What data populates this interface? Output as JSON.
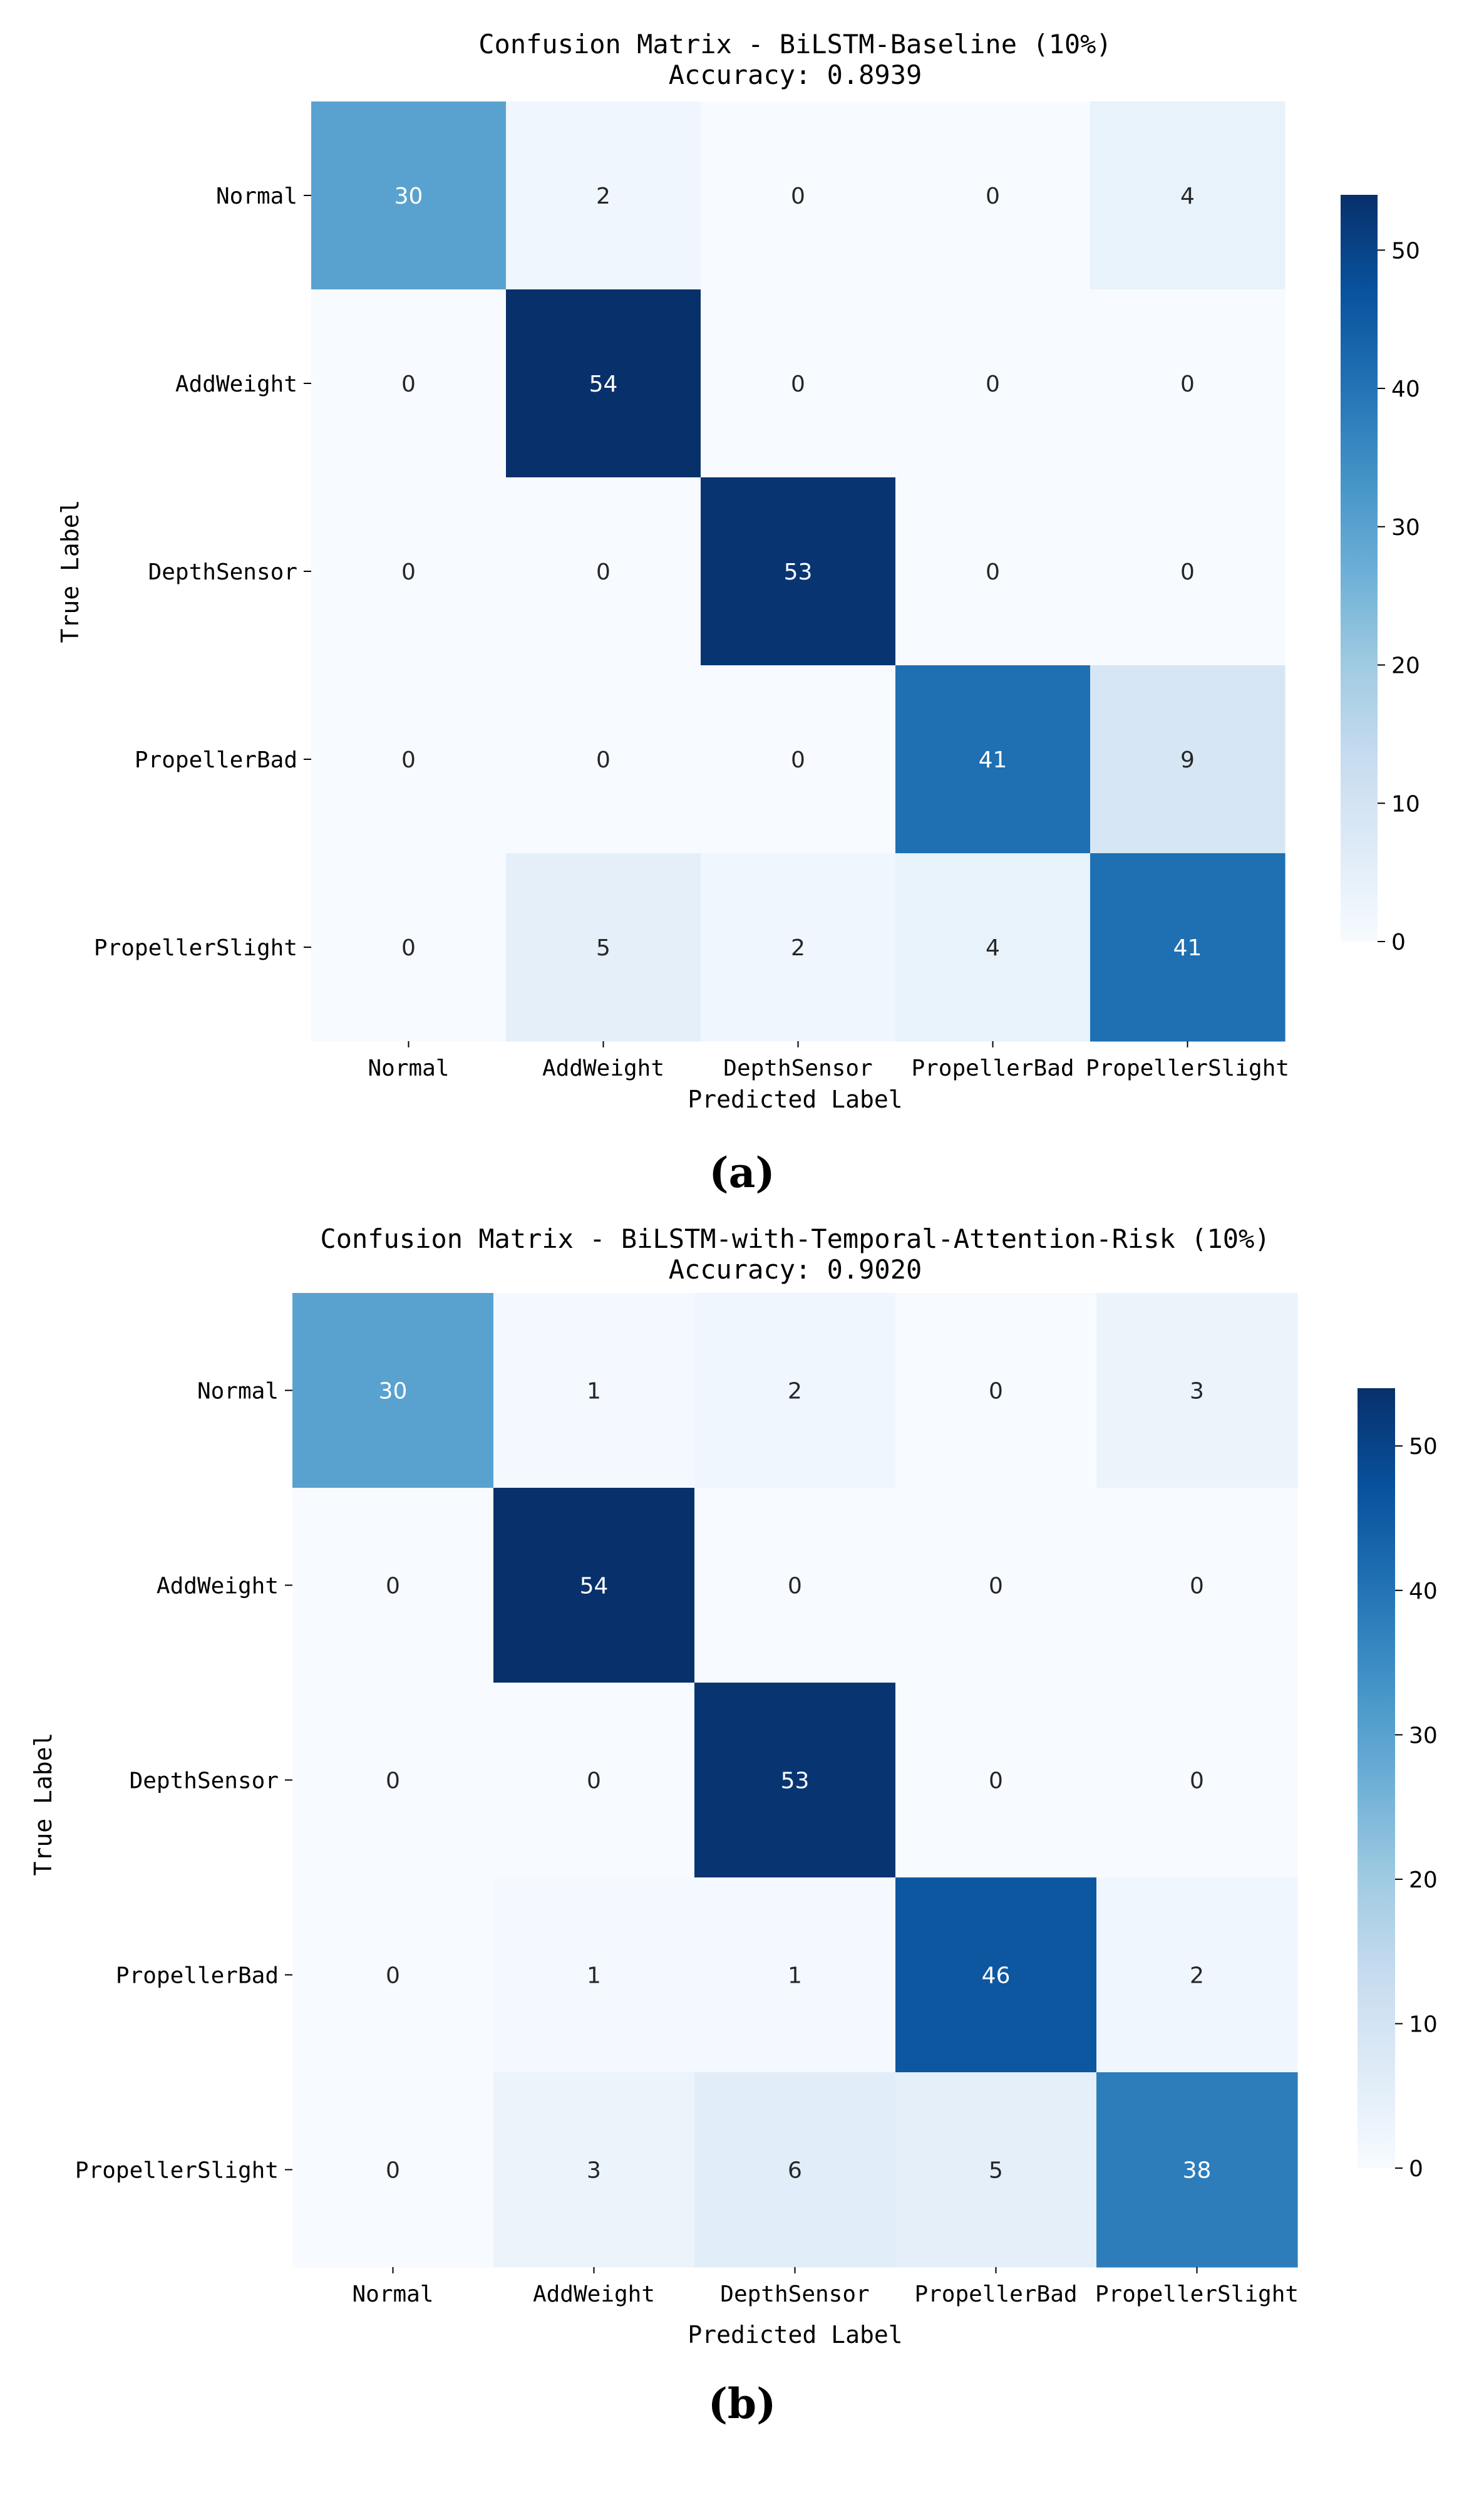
{
  "chart_data": [
    {
      "type": "heatmap",
      "title": "Confusion Matrix - BiLSTM-Baseline (10%)",
      "subtitle": "Accuracy: 0.8939",
      "xlabel": "Predicted Label",
      "ylabel": "True Label",
      "x_categories": [
        "Normal",
        "AddWeight",
        "DepthSensor",
        "PropellerBad",
        "PropellerSlight"
      ],
      "y_categories": [
        "Normal",
        "AddWeight",
        "DepthSensor",
        "PropellerBad",
        "PropellerSlight"
      ],
      "values": [
        [
          30,
          2,
          0,
          0,
          4
        ],
        [
          0,
          54,
          0,
          0,
          0
        ],
        [
          0,
          0,
          53,
          0,
          0
        ],
        [
          0,
          0,
          0,
          41,
          9
        ],
        [
          0,
          5,
          2,
          4,
          41
        ]
      ],
      "colorbar": {
        "min": 0,
        "max": 54,
        "ticks": [
          0,
          10,
          20,
          30,
          40,
          50
        ],
        "colormap": "Blues"
      },
      "caption": "(a)"
    },
    {
      "type": "heatmap",
      "title": "Confusion Matrix - BiLSTM-with-Temporal-Attention-Risk (10%)",
      "subtitle": "Accuracy: 0.9020",
      "xlabel": "Predicted Label",
      "ylabel": "True Label",
      "x_categories": [
        "Normal",
        "AddWeight",
        "DepthSensor",
        "PropellerBad",
        "PropellerSlight"
      ],
      "y_categories": [
        "Normal",
        "AddWeight",
        "DepthSensor",
        "PropellerBad",
        "PropellerSlight"
      ],
      "values": [
        [
          30,
          1,
          2,
          0,
          3
        ],
        [
          0,
          54,
          0,
          0,
          0
        ],
        [
          0,
          0,
          53,
          0,
          0
        ],
        [
          0,
          1,
          1,
          46,
          2
        ],
        [
          0,
          3,
          6,
          5,
          38
        ]
      ],
      "colorbar": {
        "min": 0,
        "max": 54,
        "ticks": [
          0,
          10,
          20,
          30,
          40,
          50
        ],
        "colormap": "Blues"
      },
      "caption": "(b)"
    }
  ]
}
